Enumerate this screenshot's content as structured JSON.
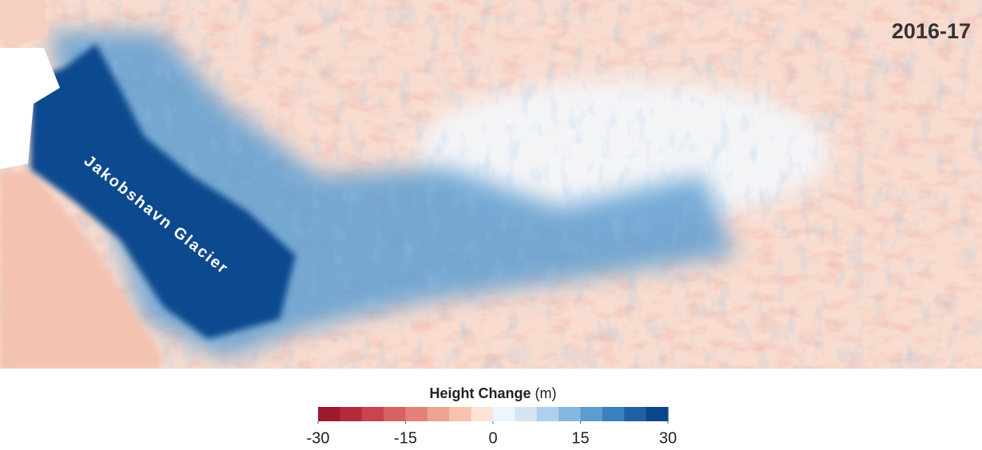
{
  "map": {
    "year_label": "2016-17",
    "glacier_label": "Jakobshavn Glacier"
  },
  "legend": {
    "title": "Height Change",
    "unit": "(m)",
    "range": [
      -30,
      30
    ],
    "ticks": [
      -30,
      -15,
      0,
      15,
      30
    ],
    "colors": [
      "#9e1a2e",
      "#b42c3c",
      "#c8444e",
      "#d76262",
      "#e4827a",
      "#efa391",
      "#f7c3ae",
      "#fce3d6",
      "#eef5fb",
      "#d3e5f3",
      "#afd0ea",
      "#86b7de",
      "#5c9ccf",
      "#3a7fbe",
      "#1f61a4",
      "#0d4688"
    ]
  }
}
